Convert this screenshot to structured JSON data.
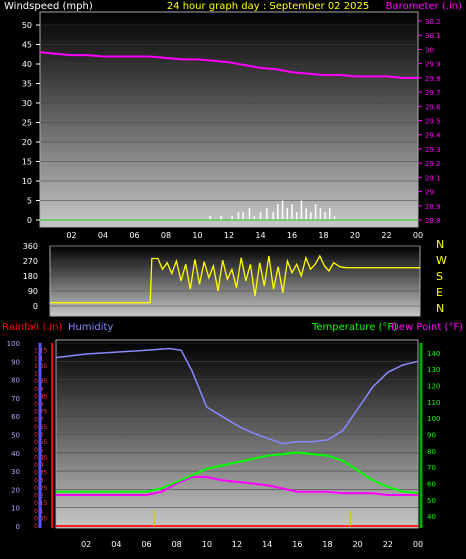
{
  "colors": {
    "background": "#000000",
    "windspeed": "#ffffff",
    "barometer": "#ff00ff",
    "title": "#ffff00",
    "direction": "#ffff00",
    "rainfall": "#ff0000",
    "humidity": "#8888ff",
    "temperature": "#00ff00",
    "dewpoint": "#ff00ff",
    "rain_bar": "#cccc00"
  },
  "chart_data": [
    {
      "type": "line",
      "title": "24 hour graph day : September 02 2025",
      "left_label": "Windspeed (mph)",
      "right_label": "Barometer (.in)",
      "x_ticks": [
        "02",
        "04",
        "06",
        "08",
        "10",
        "12",
        "14",
        "16",
        "18",
        "20",
        "22",
        "00"
      ],
      "x_range": [
        0,
        24
      ],
      "left_ticks": [
        0,
        5,
        10,
        15,
        20,
        25,
        30,
        35,
        40,
        45,
        50
      ],
      "left_range": [
        0,
        50
      ],
      "right_ticks": [
        "28.8",
        "28.9",
        "29",
        "29.1",
        "29.2",
        "29.3",
        "29.4",
        "29.5",
        "29.6",
        "29.7",
        "29.8",
        "29.9",
        "30",
        "30.1",
        "30.2"
      ],
      "right_range": [
        28.8,
        30.2
      ],
      "series": [
        {
          "axis": "right",
          "hours": [
            0,
            1,
            2,
            3,
            4,
            5,
            6,
            7,
            8,
            9,
            10,
            11,
            12,
            13,
            14,
            15,
            16,
            17,
            18,
            19,
            20,
            21,
            22,
            23,
            24
          ],
          "values": [
            29.98,
            29.97,
            29.96,
            29.96,
            29.95,
            29.95,
            29.95,
            29.95,
            29.94,
            29.93,
            29.93,
            29.92,
            29.91,
            29.89,
            29.87,
            29.86,
            29.84,
            29.83,
            29.82,
            29.82,
            29.81,
            29.81,
            29.81,
            29.8,
            29.8
          ]
        },
        {
          "axis": "left",
          "type": "bar",
          "hours": [
            10.8,
            11.5,
            12.2,
            12.6,
            12.9,
            13.3,
            13.6,
            14.0,
            14.4,
            14.8,
            15.1,
            15.4,
            15.7,
            16.0,
            16.3,
            16.6,
            16.9,
            17.2,
            17.5,
            17.8,
            18.1,
            18.4,
            18.7
          ],
          "values": [
            1,
            1,
            1,
            2,
            2,
            3,
            1,
            2,
            3,
            2,
            4,
            5,
            3,
            4,
            2,
            5,
            3,
            2,
            4,
            3,
            2,
            3,
            1
          ]
        }
      ]
    },
    {
      "type": "line",
      "y_labels": [
        "360",
        "270",
        "180",
        "90",
        "0"
      ],
      "y_range": [
        0,
        360
      ],
      "compass_labels": [
        "N",
        "W",
        "S",
        "E",
        "N"
      ],
      "series": [
        {
          "hours": [
            0,
            6.5,
            6.6,
            7.0,
            7.3,
            7.6,
            7.9,
            8.2,
            8.5,
            8.8,
            9.1,
            9.4,
            9.7,
            10.0,
            10.3,
            10.6,
            10.9,
            11.2,
            11.5,
            11.8,
            12.1,
            12.4,
            12.7,
            13.0,
            13.3,
            13.6,
            13.9,
            14.2,
            14.5,
            14.8,
            15.1,
            15.4,
            15.7,
            16.0,
            16.3,
            16.6,
            16.9,
            17.2,
            17.5,
            17.8,
            18.1,
            18.4,
            18.8,
            19.2,
            24
          ],
          "values": [
            20,
            20,
            285,
            285,
            220,
            260,
            195,
            270,
            150,
            250,
            100,
            280,
            130,
            265,
            170,
            240,
            90,
            275,
            160,
            220,
            110,
            290,
            150,
            250,
            60,
            260,
            120,
            300,
            100,
            235,
            80,
            270,
            200,
            250,
            180,
            290,
            220,
            250,
            300,
            240,
            210,
            260,
            235,
            230,
            230
          ]
        }
      ]
    },
    {
      "type": "line",
      "left_label_1": "Rainfall (.in)",
      "left_label_2": "Humidity",
      "right_label_1": "Temperature (°F)",
      "right_label_2": "Dew Point (°F)",
      "x_ticks": [
        "02",
        "04",
        "06",
        "08",
        "10",
        "12",
        "14",
        "16",
        "18",
        "20",
        "22",
        "00"
      ],
      "x_range": [
        0,
        24
      ],
      "rain_ticks": [
        "0",
        "0.05",
        "0.1",
        "0.15",
        "0.2",
        "0.25",
        "0.3",
        "0.35",
        "0.4",
        "0.45",
        "0.5",
        "0.55",
        "0.6",
        "0.65",
        "0.7",
        "0.75",
        "0.8",
        "0.85",
        "0.9",
        "0.95",
        "1",
        "1.05",
        "1.1",
        "1.15"
      ],
      "rain_range": [
        0,
        1.2
      ],
      "humidity_ticks": [
        0,
        10,
        20,
        30,
        40,
        50,
        60,
        70,
        80,
        90,
        100
      ],
      "humidity_range": [
        0,
        100
      ],
      "temp_ticks": [
        40,
        50,
        60,
        70,
        80,
        90,
        100,
        110,
        120,
        130,
        140
      ],
      "temp_range": [
        34,
        146
      ],
      "series": [
        {
          "name": "Humidity",
          "axis": "humidity",
          "hours": [
            0,
            2,
            4,
            6,
            7.5,
            8.3,
            9,
            10,
            11,
            12,
            13,
            14,
            15,
            16,
            17,
            18,
            19,
            20,
            21,
            22,
            23,
            24
          ],
          "values": [
            92,
            94,
            95,
            96,
            97,
            96,
            85,
            65,
            60,
            55,
            51,
            48,
            45,
            46,
            46,
            47,
            52,
            64,
            76,
            84,
            88,
            90
          ]
        },
        {
          "name": "Temperature (°F)",
          "axis": "temp",
          "hours": [
            0,
            2,
            4,
            6,
            7,
            8,
            9,
            10,
            11,
            12,
            13,
            14,
            15,
            16,
            17,
            18,
            19,
            20,
            21,
            22,
            23,
            24
          ],
          "values": [
            55,
            55,
            55,
            55,
            57,
            61,
            65,
            69,
            71,
            73,
            75,
            77,
            78,
            79,
            78,
            77,
            74,
            68,
            62,
            58,
            55,
            54
          ]
        },
        {
          "name": "Dew Point (°F)",
          "axis": "temp",
          "hours": [
            0,
            2,
            4,
            6,
            7,
            8,
            9,
            10,
            11,
            12,
            13,
            14,
            15,
            16,
            17,
            18,
            19,
            20,
            21,
            22,
            23,
            24
          ],
          "values": [
            53,
            53,
            53,
            53,
            55,
            60,
            64,
            64,
            62,
            61,
            60,
            59,
            57,
            55,
            55,
            55,
            54,
            54,
            54,
            53,
            53,
            53
          ]
        },
        {
          "name": "Rainfall (.in)",
          "axis": "rain",
          "type": "bar",
          "hours": [
            6.5,
            19.5
          ],
          "values": [
            0.1,
            0.1
          ]
        }
      ]
    }
  ]
}
